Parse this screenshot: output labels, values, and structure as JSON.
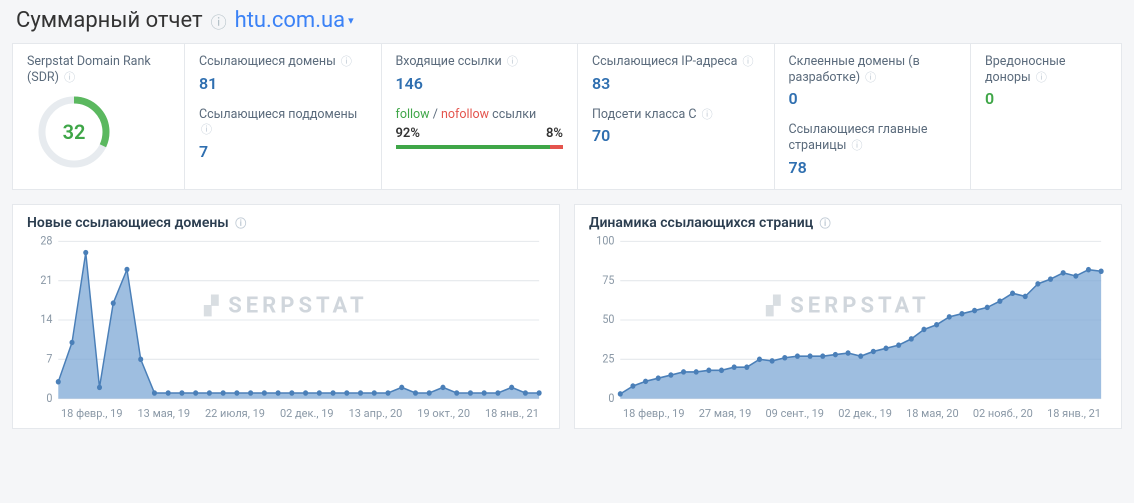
{
  "header": {
    "title": "Суммарный отчет",
    "domain": "htu.com.ua"
  },
  "metrics": {
    "sdr": {
      "label": "Serpstat Domain Rank (SDR)",
      "value": 32,
      "max": 100,
      "ring_color": "#5bb85f",
      "ring_bg": "#e7ebef"
    },
    "ref_domains": {
      "label": "Ссылающиеся домены",
      "value": "81"
    },
    "ref_subdomains": {
      "label": "Ссылающиеся поддомены",
      "value": "7"
    },
    "incoming": {
      "label": "Входящие ссылки",
      "value": "146"
    },
    "follow": {
      "label_follow": "follow",
      "label_nofollow": "nofollow",
      "label_suffix": "ссылки",
      "follow_pct": "92%",
      "nofollow_pct": "8%",
      "follow_width": 92,
      "bar_follow_color": "#3fa648",
      "bar_nofollow_color": "#e4544d"
    },
    "ref_ips": {
      "label": "Ссылающиеся IP-адреса",
      "value": "83"
    },
    "subnets_c": {
      "label": "Подсети класса C",
      "value": "70"
    },
    "glued": {
      "label": "Склеенные домены (в разработке)",
      "value": "0"
    },
    "ref_mainpages": {
      "label": "Ссылающиеся главные страницы",
      "value": "78"
    },
    "malicious": {
      "label": "Вредоносные доноры",
      "value": "0"
    }
  },
  "charts": {
    "new_domains": {
      "title": "Новые ссылающиеся домены",
      "type": "area",
      "color": "#4a7fb8",
      "fill": "#7ea8d6",
      "grid_color": "#e5e8ec",
      "background": "#ffffff",
      "y_ticks": [
        0,
        7,
        14,
        21,
        28
      ],
      "ylim": [
        0,
        28
      ],
      "x_labels": [
        "18 февр., 19",
        "13 мая, 19",
        "22 июля, 19",
        "02 дек., 19",
        "13 апр., 20",
        "19 окт., 20",
        "18 янв., 21"
      ],
      "values": [
        3,
        10,
        26,
        2,
        17,
        23,
        7,
        1,
        1,
        1,
        1,
        1,
        1,
        1,
        1,
        1,
        1,
        1,
        1,
        1,
        1,
        1,
        1,
        1,
        1,
        2,
        1,
        1,
        2,
        1,
        1,
        1,
        1,
        2,
        1,
        1
      ]
    },
    "ref_pages": {
      "title": "Динамика ссылающихся страниц",
      "type": "area",
      "color": "#4a7fb8",
      "fill": "#7ea8d6",
      "grid_color": "#e5e8ec",
      "background": "#ffffff",
      "y_ticks": [
        0,
        25,
        50,
        75,
        100
      ],
      "ylim": [
        0,
        100
      ],
      "x_labels": [
        "18 февр., 19",
        "27 мая, 19",
        "09 сент., 19",
        "02 дек., 19",
        "18 мая, 20",
        "02 нояб., 20",
        "18 янв., 21"
      ],
      "values": [
        3,
        8,
        11,
        13,
        15,
        17,
        17,
        18,
        18,
        20,
        20,
        25,
        24,
        26,
        27,
        27,
        27,
        28,
        29,
        27,
        30,
        32,
        34,
        38,
        44,
        47,
        52,
        54,
        56,
        58,
        62,
        67,
        65,
        73,
        76,
        80,
        78,
        82,
        81
      ]
    }
  },
  "watermark": "SERPSTAT"
}
